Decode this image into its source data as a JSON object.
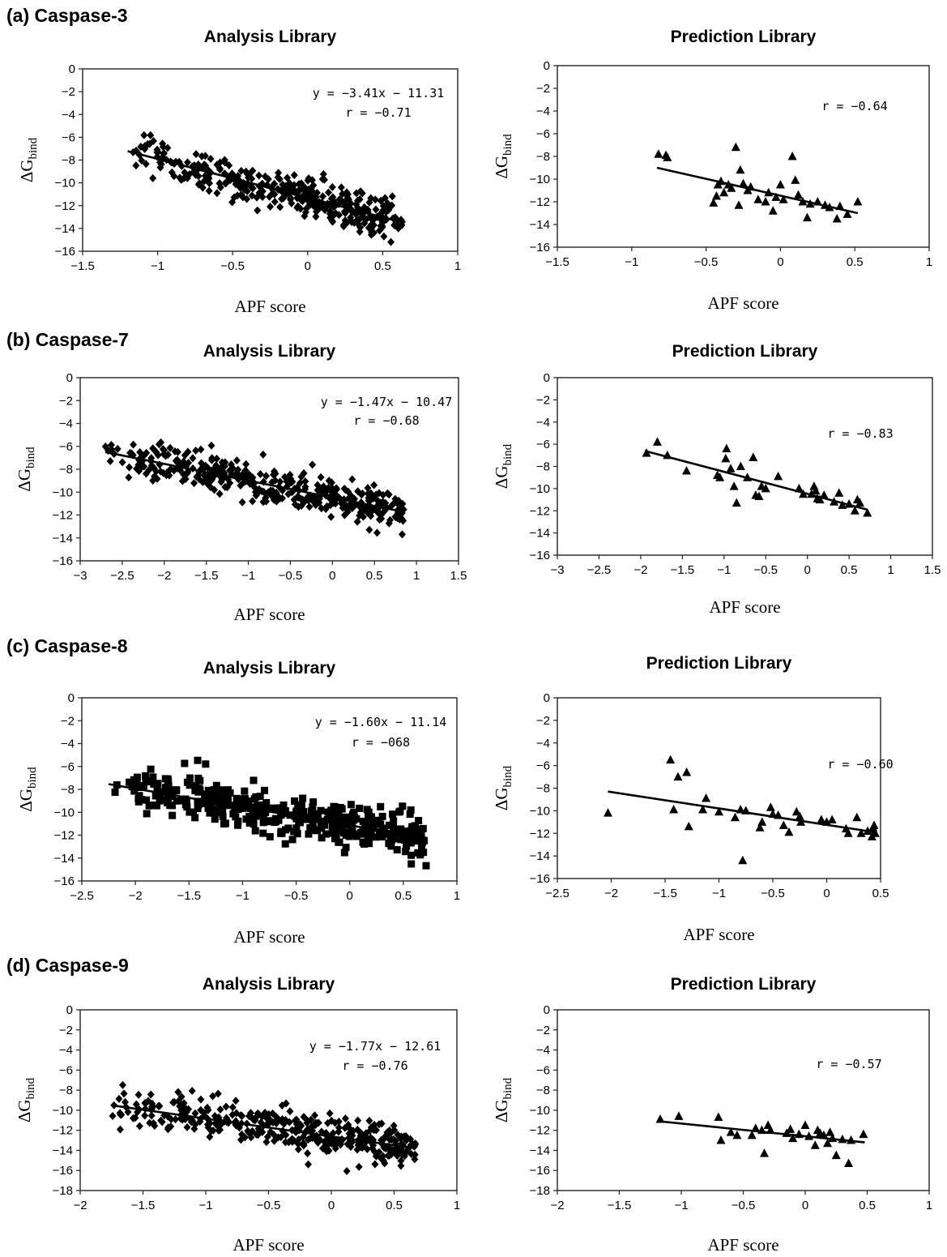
{
  "figure": {
    "sections": [
      {
        "label": "(a) Caspase-3"
      },
      {
        "label": "(b) Caspase-7"
      },
      {
        "label": "(c) Caspase-8"
      },
      {
        "label": "(d) Caspase-9"
      }
    ]
  },
  "chart_data": [
    {
      "id": "a-analysis",
      "section": "(a) Caspase-3",
      "type": "scatter",
      "title": "Analysis Library",
      "xlabel": "APF score",
      "ylabel": "ΔG_bind",
      "ylabel_main": "ΔG",
      "ylabel_sub": "bind",
      "xlim": [
        -1.5,
        1
      ],
      "ylim": [
        -16,
        0
      ],
      "xticks": [
        -1.5,
        -1,
        -0.5,
        0,
        0.5,
        1
      ],
      "yticks": [
        0,
        -2,
        -4,
        -6,
        -8,
        -10,
        -12,
        -14,
        -16
      ],
      "xtick_labels": [
        "−1.5",
        "−1",
        "−0.5",
        "0",
        "0.5",
        "1"
      ],
      "ytick_labels": [
        "0",
        "−2",
        "−4",
        "−6",
        "−8",
        "−10",
        "−12",
        "−14",
        "−16"
      ],
      "marker": "diamond",
      "n_points": 380,
      "x_range": [
        -1.2,
        0.63
      ],
      "fit": {
        "slope": -3.41,
        "intercept": -11.31,
        "x": [
          -1.2,
          0.63
        ]
      },
      "equation": "y = −3.41x − 11.31",
      "r_label": "r = −0.71",
      "r": -0.71
    },
    {
      "id": "a-prediction",
      "section": "(a) Caspase-3",
      "type": "scatter",
      "title": "Prediction Library",
      "xlabel": "APF score",
      "ylabel": "ΔG_bind",
      "ylabel_main": "ΔG",
      "ylabel_sub": "bind",
      "xlim": [
        -1.5,
        1
      ],
      "ylim": [
        -16,
        0
      ],
      "xticks": [
        -1.5,
        -1,
        -0.5,
        0,
        0.5,
        1
      ],
      "yticks": [
        0,
        -2,
        -4,
        -6,
        -8,
        -10,
        -12,
        -14,
        -16
      ],
      "xtick_labels": [
        "−1.5",
        "−1",
        "−0.5",
        "0",
        "0.5",
        "1"
      ],
      "ytick_labels": [
        "0",
        "−2",
        "−4",
        "−6",
        "−8",
        "−10",
        "−12",
        "−14",
        "−16"
      ],
      "marker": "triangle",
      "fit": {
        "x": [
          -0.83,
          0.52
        ],
        "y": [
          -9.0,
          -13.0
        ]
      },
      "equation": "",
      "r_label": "r = −0.64",
      "r": -0.64,
      "points": [
        [
          -0.82,
          -7.8
        ],
        [
          -0.77,
          -7.9
        ],
        [
          -0.76,
          -8.1
        ],
        [
          -0.45,
          -12.1
        ],
        [
          -0.43,
          -11.5
        ],
        [
          -0.42,
          -10.5
        ],
        [
          -0.4,
          -10.2
        ],
        [
          -0.38,
          -11.2
        ],
        [
          -0.35,
          -10.5
        ],
        [
          -0.33,
          -10.8
        ],
        [
          -0.3,
          -7.2
        ],
        [
          -0.28,
          -12.3
        ],
        [
          -0.27,
          -9.2
        ],
        [
          -0.25,
          -10.4
        ],
        [
          -0.22,
          -11.0
        ],
        [
          -0.2,
          -10.7
        ],
        [
          -0.15,
          -11.8
        ],
        [
          -0.1,
          -12.0
        ],
        [
          -0.08,
          -11.2
        ],
        [
          -0.05,
          -12.8
        ],
        [
          -0.03,
          -11.6
        ],
        [
          0.0,
          -10.5
        ],
        [
          0.02,
          -11.8
        ],
        [
          0.08,
          -8.0
        ],
        [
          0.1,
          -10.1
        ],
        [
          0.12,
          -11.4
        ],
        [
          0.15,
          -12.0
        ],
        [
          0.18,
          -13.4
        ],
        [
          0.2,
          -12.2
        ],
        [
          0.25,
          -12.0
        ],
        [
          0.3,
          -12.3
        ],
        [
          0.33,
          -12.5
        ],
        [
          0.38,
          -13.5
        ],
        [
          0.4,
          -12.4
        ],
        [
          0.45,
          -13.1
        ],
        [
          0.52,
          -12.0
        ]
      ]
    },
    {
      "id": "b-analysis",
      "section": "(b) Caspase-7",
      "type": "scatter",
      "title": "Analysis Library",
      "xlabel": "APF score",
      "ylabel": "ΔG_bind",
      "ylabel_main": "ΔG",
      "ylabel_sub": "bind",
      "xlim": [
        -3,
        1.5
      ],
      "ylim": [
        -16,
        0
      ],
      "xticks": [
        -3,
        -2.5,
        -2,
        -1.5,
        -1,
        -0.5,
        0,
        0.5,
        1,
        1.5
      ],
      "yticks": [
        0,
        -2,
        -4,
        -6,
        -8,
        -10,
        -12,
        -14,
        -16
      ],
      "xtick_labels": [
        "−3",
        "−2.5",
        "−2",
        "−1.5",
        "−1",
        "−0.5",
        "0",
        "0.5",
        "1",
        "1.5"
      ],
      "ytick_labels": [
        "0",
        "−2",
        "−4",
        "−6",
        "−8",
        "−10",
        "−12",
        "−14",
        "−16"
      ],
      "marker": "diamond",
      "n_points": 380,
      "x_range": [
        -2.7,
        0.85
      ],
      "fit": {
        "slope": -1.47,
        "intercept": -10.47,
        "x": [
          -2.7,
          0.85
        ]
      },
      "equation": "y = −1.47x − 10.47",
      "r_label": "r = −0.68",
      "r": -0.68
    },
    {
      "id": "b-prediction",
      "section": "(b) Caspase-7",
      "type": "scatter",
      "title": "Prediction Library",
      "xlabel": "APF score",
      "ylabel": "ΔG_bind",
      "ylabel_main": "ΔG",
      "ylabel_sub": "bind",
      "xlim": [
        -3,
        1.5
      ],
      "ylim": [
        -16,
        0
      ],
      "xticks": [
        -3,
        -2.5,
        -2,
        -1.5,
        -1,
        -0.5,
        0,
        0.5,
        1,
        1.5
      ],
      "yticks": [
        0,
        -2,
        -4,
        -6,
        -8,
        -10,
        -12,
        -14,
        -16
      ],
      "xtick_labels": [
        "−3",
        "−2.5",
        "−2",
        "−1.5",
        "−1",
        "−0.5",
        "0",
        "0.5",
        "1",
        "1.5"
      ],
      "ytick_labels": [
        "0",
        "−2",
        "−4",
        "−6",
        "−8",
        "−10",
        "−12",
        "−14",
        "−16"
      ],
      "marker": "triangle",
      "fit": {
        "x": [
          -1.95,
          0.72
        ],
        "y": [
          -6.6,
          -11.9
        ]
      },
      "equation": "",
      "r_label": "r = −0.83",
      "r": -0.83,
      "points": [
        [
          -1.93,
          -6.8
        ],
        [
          -1.8,
          -5.8
        ],
        [
          -1.68,
          -7.0
        ],
        [
          -1.45,
          -8.4
        ],
        [
          -1.08,
          -8.8
        ],
        [
          -1.05,
          -9.0
        ],
        [
          -0.98,
          -7.3
        ],
        [
          -0.97,
          -6.4
        ],
        [
          -0.92,
          -8.2
        ],
        [
          -0.88,
          -9.8
        ],
        [
          -0.85,
          -11.3
        ],
        [
          -0.8,
          -8.0
        ],
        [
          -0.72,
          -9.0
        ],
        [
          -0.65,
          -7.2
        ],
        [
          -0.62,
          -10.6
        ],
        [
          -0.58,
          -10.7
        ],
        [
          -0.55,
          -9.8
        ],
        [
          -0.5,
          -10.0
        ],
        [
          -0.35,
          -8.9
        ],
        [
          -0.1,
          -10.0
        ],
        [
          -0.05,
          -10.5
        ],
        [
          0.05,
          -10.5
        ],
        [
          0.08,
          -9.8
        ],
        [
          0.1,
          -10.2
        ],
        [
          0.12,
          -10.9
        ],
        [
          0.15,
          -11.0
        ],
        [
          0.2,
          -10.6
        ],
        [
          0.32,
          -11.2
        ],
        [
          0.38,
          -10.4
        ],
        [
          0.42,
          -11.5
        ],
        [
          0.5,
          -11.4
        ],
        [
          0.57,
          -12.0
        ],
        [
          0.6,
          -11.0
        ],
        [
          0.63,
          -11.3
        ],
        [
          0.72,
          -12.2
        ]
      ]
    },
    {
      "id": "c-analysis",
      "section": "(c) Caspase-8",
      "type": "scatter",
      "title": "Analysis Library",
      "xlabel": "APF score",
      "ylabel": "ΔG_bind",
      "ylabel_main": "ΔG",
      "ylabel_sub": "bind",
      "xlim": [
        -2.5,
        1
      ],
      "ylim": [
        -16,
        0
      ],
      "xticks": [
        -2.5,
        -2,
        -1.5,
        -1,
        -0.5,
        0,
        0.5,
        1
      ],
      "yticks": [
        0,
        -2,
        -4,
        -6,
        -8,
        -10,
        -12,
        -14,
        -16
      ],
      "xtick_labels": [
        "−2.5",
        "−2",
        "−1.5",
        "−1",
        "−0.5",
        "0",
        "0.5",
        "1"
      ],
      "ytick_labels": [
        "0",
        "−2",
        "−4",
        "−6",
        "−8",
        "−10",
        "−12",
        "−14",
        "−16"
      ],
      "marker": "square",
      "n_points": 400,
      "x_range": [
        -2.25,
        0.72
      ],
      "fit": {
        "slope": -1.6,
        "intercept": -11.14,
        "x": [
          -2.25,
          0.72
        ]
      },
      "equation": "y = −1.60x − 11.14",
      "r_label": "r = −068",
      "r": -0.68
    },
    {
      "id": "c-prediction",
      "section": "(c) Caspase-8",
      "type": "scatter",
      "title": "Prediction Library",
      "xlabel": "APF score",
      "ylabel": "ΔG_bind",
      "ylabel_main": "ΔG",
      "ylabel_sub": "bind",
      "xlim": [
        -2.5,
        0.5
      ],
      "ylim": [
        -16,
        0
      ],
      "xticks": [
        -2.5,
        -2,
        -1.5,
        -1,
        -0.5,
        0,
        0.5
      ],
      "yticks": [
        0,
        -2,
        -4,
        -6,
        -8,
        -10,
        -12,
        -14,
        -16
      ],
      "xtick_labels": [
        "−2.5",
        "−2",
        "−1.5",
        "−1",
        "−0.5",
        "0",
        "0.5"
      ],
      "ytick_labels": [
        "0",
        "−2",
        "−4",
        "−6",
        "−8",
        "−10",
        "−12",
        "−14",
        "−16"
      ],
      "marker": "triangle",
      "fit": {
        "x": [
          -2.03,
          0.45
        ],
        "y": [
          -8.3,
          -11.9
        ]
      },
      "equation": "",
      "r_label": "r = −0.60",
      "r": -0.6,
      "points": [
        [
          -2.03,
          -10.2
        ],
        [
          -1.45,
          -5.5
        ],
        [
          -1.42,
          -9.9
        ],
        [
          -1.38,
          -7.0
        ],
        [
          -1.3,
          -6.6
        ],
        [
          -1.28,
          -11.4
        ],
        [
          -1.15,
          -9.9
        ],
        [
          -1.12,
          -8.9
        ],
        [
          -1.0,
          -10.1
        ],
        [
          -0.85,
          -10.6
        ],
        [
          -0.8,
          -9.9
        ],
        [
          -0.78,
          -14.4
        ],
        [
          -0.75,
          -10.0
        ],
        [
          -0.62,
          -11.5
        ],
        [
          -0.6,
          -11.0
        ],
        [
          -0.52,
          -9.7
        ],
        [
          -0.5,
          -10.3
        ],
        [
          -0.45,
          -10.4
        ],
        [
          -0.4,
          -11.3
        ],
        [
          -0.35,
          -11.9
        ],
        [
          -0.28,
          -10.1
        ],
        [
          -0.25,
          -10.5
        ],
        [
          -0.24,
          -11.0
        ],
        [
          -0.05,
          -10.8
        ],
        [
          0.0,
          -11.0
        ],
        [
          0.05,
          -10.8
        ],
        [
          0.18,
          -11.6
        ],
        [
          0.2,
          -12.0
        ],
        [
          0.28,
          -10.6
        ],
        [
          0.32,
          -12.0
        ],
        [
          0.38,
          -11.8
        ],
        [
          0.42,
          -12.3
        ],
        [
          0.43,
          -11.5
        ],
        [
          0.44,
          -11.3
        ],
        [
          0.45,
          -12.0
        ]
      ]
    },
    {
      "id": "d-analysis",
      "section": "(d) Caspase-9",
      "type": "scatter",
      "title": "Analysis Library",
      "xlabel": "APF score",
      "ylabel": "ΔG_bind",
      "ylabel_main": "ΔG",
      "ylabel_sub": "bind",
      "xlim": [
        -2,
        1
      ],
      "ylim": [
        -18,
        0
      ],
      "xticks": [
        -2,
        -1.5,
        -1,
        -0.5,
        0,
        0.5,
        1
      ],
      "yticks": [
        0,
        -2,
        -4,
        -6,
        -8,
        -10,
        -12,
        -14,
        -16,
        -18
      ],
      "xtick_labels": [
        "−2",
        "−1.5",
        "−1",
        "−0.5",
        "0",
        "0.5",
        "1"
      ],
      "ytick_labels": [
        "0",
        "−2",
        "−4",
        "−6",
        "−8",
        "−10",
        "−12",
        "−14",
        "−16",
        "−18"
      ],
      "marker": "diamond",
      "n_points": 380,
      "x_range": [
        -1.75,
        0.67
      ],
      "fit": {
        "slope": -1.77,
        "intercept": -12.61,
        "x": [
          -1.75,
          0.67
        ]
      },
      "equation": "y = −1.77x − 12.61",
      "r_label": "r = −0.76",
      "r": -0.76
    },
    {
      "id": "d-prediction",
      "section": "(d) Caspase-9",
      "type": "scatter",
      "title": "Prediction Library",
      "xlabel": "APF score",
      "ylabel": "ΔG_bind",
      "ylabel_main": "ΔG",
      "ylabel_sub": "bind",
      "xlim": [
        -2,
        1
      ],
      "ylim": [
        -18,
        0
      ],
      "xticks": [
        -2,
        -1.5,
        -1,
        -0.5,
        0,
        0.5,
        1
      ],
      "yticks": [
        0,
        -2,
        -4,
        -6,
        -8,
        -10,
        -12,
        -14,
        -16,
        -18
      ],
      "xtick_labels": [
        "−2",
        "−1.5",
        "−1",
        "−0.5",
        "0",
        "0.5",
        "1"
      ],
      "ytick_labels": [
        "0",
        "−2",
        "−4",
        "−6",
        "−8",
        "−10",
        "−12",
        "−14",
        "−16",
        "−18"
      ],
      "marker": "triangle",
      "fit": {
        "x": [
          -1.18,
          0.48
        ],
        "y": [
          -11.1,
          -13.2
        ]
      },
      "equation": "",
      "r_label": "r = −0.57",
      "r": -0.57,
      "points": [
        [
          -1.17,
          -10.9
        ],
        [
          -1.02,
          -10.6
        ],
        [
          -0.7,
          -10.7
        ],
        [
          -0.68,
          -13.0
        ],
        [
          -0.6,
          -12.2
        ],
        [
          -0.55,
          -12.5
        ],
        [
          -0.43,
          -12.5
        ],
        [
          -0.4,
          -11.8
        ],
        [
          -0.35,
          -12.0
        ],
        [
          -0.33,
          -14.3
        ],
        [
          -0.3,
          -11.5
        ],
        [
          -0.28,
          -12.0
        ],
        [
          -0.15,
          -12.3
        ],
        [
          -0.12,
          -11.9
        ],
        [
          -0.1,
          -12.8
        ],
        [
          -0.05,
          -12.4
        ],
        [
          0.0,
          -11.5
        ],
        [
          0.03,
          -12.6
        ],
        [
          0.08,
          -13.5
        ],
        [
          0.1,
          -12.0
        ],
        [
          0.12,
          -12.3
        ],
        [
          0.15,
          -12.5
        ],
        [
          0.18,
          -13.3
        ],
        [
          0.2,
          -12.2
        ],
        [
          0.22,
          -12.8
        ],
        [
          0.25,
          -14.5
        ],
        [
          0.3,
          -12.9
        ],
        [
          0.35,
          -15.3
        ],
        [
          0.37,
          -13.0
        ],
        [
          0.47,
          -12.4
        ]
      ]
    }
  ]
}
